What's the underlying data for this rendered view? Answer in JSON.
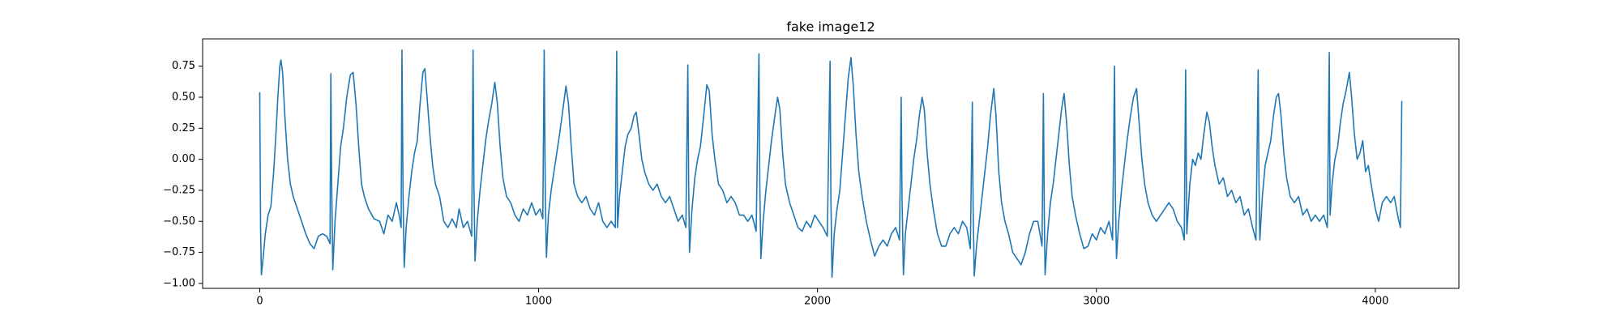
{
  "chart_data": {
    "type": "line",
    "title": "fake image12",
    "color": "#1f77b4",
    "grid": false,
    "xlim": [
      -204.75,
      4299.75
    ],
    "xticks": [
      0,
      1000,
      2000,
      3000,
      4000
    ],
    "ylim": [
      -1.04,
      0.97
    ],
    "yticks": [
      {
        "value": -1,
        "label": "−1.00"
      },
      {
        "value": -0.75,
        "label": "−0.75"
      },
      {
        "value": -0.5,
        "label": "−0.50"
      },
      {
        "value": -0.25,
        "label": "−0.25"
      },
      {
        "value": 0,
        "label": "0.00"
      },
      {
        "value": 0.25,
        "label": "0.25"
      },
      {
        "value": 0.5,
        "label": "0.50"
      },
      {
        "value": 0.75,
        "label": "0.75"
      }
    ],
    "x": [
      0,
      3,
      6,
      12,
      20,
      30,
      40,
      50,
      58,
      65,
      72,
      76,
      82,
      90,
      100,
      110,
      120,
      135,
      150,
      165,
      180,
      195,
      210,
      225,
      240,
      252,
      255,
      258,
      262,
      270,
      280,
      290,
      300,
      312,
      325,
      335,
      345,
      355,
      365,
      375,
      390,
      410,
      430,
      445,
      460,
      475,
      490,
      500,
      507,
      510,
      514,
      518,
      525,
      535,
      545,
      555,
      565,
      575,
      585,
      592,
      600,
      610,
      620,
      630,
      645,
      660,
      675,
      690,
      705,
      715,
      730,
      745,
      760,
      765,
      768,
      772,
      780,
      790,
      800,
      810,
      820,
      832,
      843,
      852,
      862,
      872,
      885,
      900,
      915,
      930,
      945,
      960,
      975,
      990,
      1005,
      1015,
      1020,
      1024,
      1028,
      1035,
      1045,
      1055,
      1065,
      1075,
      1087,
      1098,
      1107,
      1117,
      1127,
      1140,
      1155,
      1170,
      1185,
      1200,
      1215,
      1230,
      1245,
      1260,
      1275,
      1280,
      1283,
      1290,
      1300,
      1310,
      1320,
      1332,
      1342,
      1350,
      1360,
      1370,
      1380,
      1395,
      1410,
      1425,
      1440,
      1455,
      1470,
      1485,
      1500,
      1515,
      1528,
      1535,
      1538,
      1541,
      1550,
      1560,
      1570,
      1580,
      1592,
      1603,
      1612,
      1622,
      1632,
      1645,
      1660,
      1675,
      1690,
      1705,
      1720,
      1735,
      1750,
      1765,
      1780,
      1790,
      1793,
      1797,
      1805,
      1815,
      1825,
      1835,
      1847,
      1857,
      1865,
      1875,
      1885,
      1900,
      1915,
      1930,
      1945,
      1960,
      1975,
      1990,
      2005,
      2020,
      2035,
      2045,
      2048,
      2052,
      2060,
      2070,
      2080,
      2090,
      2100,
      2110,
      2120,
      2128,
      2138,
      2148,
      2160,
      2175,
      2190,
      2205,
      2220,
      2235,
      2250,
      2265,
      2280,
      2294,
      2300,
      2303,
      2308,
      2315,
      2325,
      2335,
      2345,
      2355,
      2365,
      2375,
      2383,
      2393,
      2403,
      2415,
      2430,
      2445,
      2460,
      2475,
      2490,
      2505,
      2520,
      2535,
      2548,
      2555,
      2558,
      2562,
      2570,
      2580,
      2590,
      2600,
      2610,
      2620,
      2632,
      2640,
      2650,
      2660,
      2672,
      2685,
      2700,
      2715,
      2730,
      2745,
      2760,
      2775,
      2790,
      2805,
      2810,
      2813,
      2816,
      2825,
      2835,
      2845,
      2855,
      2865,
      2875,
      2884,
      2893,
      2903,
      2913,
      2925,
      2940,
      2955,
      2970,
      2985,
      3000,
      3015,
      3030,
      3045,
      3058,
      3065,
      3068,
      3072,
      3080,
      3090,
      3100,
      3110,
      3122,
      3133,
      3144,
      3153,
      3163,
      3173,
      3185,
      3200,
      3215,
      3230,
      3245,
      3260,
      3275,
      3290,
      3305,
      3315,
      3320,
      3324,
      3335,
      3345,
      3355,
      3365,
      3375,
      3385,
      3396,
      3405,
      3415,
      3425,
      3440,
      3455,
      3470,
      3485,
      3500,
      3515,
      3530,
      3545,
      3560,
      3572,
      3580,
      3583,
      3586,
      3595,
      3605,
      3615,
      3625,
      3635,
      3645,
      3653,
      3662,
      3672,
      3682,
      3695,
      3710,
      3725,
      3740,
      3755,
      3770,
      3785,
      3800,
      3815,
      3828,
      3835,
      3838,
      3845,
      3855,
      3865,
      3875,
      3885,
      3895,
      3907,
      3915,
      3925,
      3935,
      3945,
      3955,
      3965,
      3975,
      3985,
      4000,
      4012,
      4025,
      4040,
      4055,
      4068,
      4080,
      4090,
      4095
    ],
    "values": [
      0.54,
      -0.55,
      -0.93,
      -0.8,
      -0.6,
      -0.45,
      -0.38,
      -0.1,
      0.2,
      0.5,
      0.75,
      0.8,
      0.7,
      0.35,
      0,
      -0.2,
      -0.3,
      -0.4,
      -0.5,
      -0.6,
      -0.68,
      -0.72,
      -0.62,
      -0.6,
      -0.62,
      -0.68,
      0.69,
      -0.2,
      -0.89,
      -0.5,
      -0.2,
      0.1,
      0.25,
      0.5,
      0.68,
      0.7,
      0.45,
      0.1,
      -0.2,
      -0.3,
      -0.4,
      -0.48,
      -0.5,
      -0.6,
      -0.45,
      -0.5,
      -0.35,
      -0.45,
      -0.55,
      0.88,
      -0.3,
      -0.87,
      -0.55,
      -0.3,
      -0.1,
      0.05,
      0.15,
      0.45,
      0.7,
      0.73,
      0.5,
      0.2,
      -0.05,
      -0.2,
      -0.3,
      -0.5,
      -0.55,
      -0.48,
      -0.55,
      -0.4,
      -0.55,
      -0.5,
      -0.62,
      0.88,
      -0.2,
      -0.82,
      -0.5,
      -0.25,
      -0.05,
      0.15,
      0.3,
      0.45,
      0.62,
      0.45,
      0.1,
      -0.15,
      -0.3,
      -0.35,
      -0.45,
      -0.5,
      -0.4,
      -0.45,
      -0.35,
      -0.45,
      -0.4,
      -0.48,
      0.88,
      -0.3,
      -0.79,
      -0.45,
      -0.25,
      -0.1,
      0.05,
      0.2,
      0.4,
      0.59,
      0.45,
      0.1,
      -0.2,
      -0.3,
      -0.35,
      -0.3,
      -0.4,
      -0.45,
      -0.35,
      -0.5,
      -0.55,
      -0.5,
      -0.55,
      0.87,
      -0.55,
      -0.3,
      -0.1,
      0.1,
      0.2,
      0.25,
      0.35,
      0.38,
      0.2,
      0,
      -0.1,
      -0.2,
      -0.25,
      -0.2,
      -0.3,
      -0.35,
      -0.3,
      -0.4,
      -0.5,
      -0.45,
      -0.55,
      0.76,
      -0.2,
      -0.75,
      -0.4,
      -0.15,
      0,
      0.1,
      0.35,
      0.6,
      0.55,
      0.2,
      0,
      -0.2,
      -0.25,
      -0.35,
      -0.3,
      -0.35,
      -0.45,
      -0.45,
      -0.5,
      -0.45,
      -0.58,
      0.85,
      -0.2,
      -0.8,
      -0.5,
      -0.25,
      -0.05,
      0.15,
      0.35,
      0.5,
      0.4,
      0.05,
      -0.2,
      -0.35,
      -0.45,
      -0.55,
      -0.58,
      -0.5,
      -0.55,
      -0.45,
      -0.5,
      -0.55,
      -0.62,
      0.79,
      -0.3,
      -0.95,
      -0.6,
      -0.4,
      -0.25,
      0.05,
      0.35,
      0.65,
      0.82,
      0.6,
      0.2,
      -0.1,
      -0.3,
      -0.5,
      -0.65,
      -0.78,
      -0.7,
      -0.65,
      -0.7,
      -0.6,
      -0.55,
      -0.65,
      0.5,
      -0.3,
      -0.93,
      -0.6,
      -0.4,
      -0.2,
      0,
      0.15,
      0.35,
      0.5,
      0.4,
      0.05,
      -0.2,
      -0.4,
      -0.6,
      -0.7,
      -0.7,
      -0.6,
      -0.55,
      -0.6,
      -0.5,
      -0.55,
      -0.72,
      0.46,
      -0.4,
      -0.94,
      -0.7,
      -0.5,
      -0.3,
      -0.1,
      0.1,
      0.35,
      0.57,
      0.35,
      -0.1,
      -0.35,
      -0.5,
      -0.6,
      -0.75,
      -0.8,
      -0.85,
      -0.75,
      -0.6,
      -0.5,
      -0.5,
      -0.7,
      0.53,
      -0.4,
      -0.93,
      -0.6,
      -0.35,
      -0.2,
      0,
      0.2,
      0.4,
      0.53,
      0.3,
      -0.05,
      -0.3,
      -0.45,
      -0.6,
      -0.72,
      -0.7,
      -0.6,
      -0.65,
      -0.55,
      -0.6,
      -0.5,
      -0.65,
      0.75,
      -0.3,
      -0.8,
      -0.5,
      -0.25,
      -0.05,
      0.15,
      0.35,
      0.5,
      0.57,
      0.3,
      0,
      -0.2,
      -0.35,
      -0.45,
      -0.5,
      -0.45,
      -0.4,
      -0.35,
      -0.4,
      -0.5,
      -0.55,
      -0.65,
      0.72,
      -0.6,
      -0.2,
      0,
      -0.05,
      0.05,
      0,
      0.2,
      0.38,
      0.3,
      0.1,
      -0.05,
      -0.2,
      -0.15,
      -0.3,
      -0.25,
      -0.35,
      -0.3,
      -0.45,
      -0.4,
      -0.55,
      -0.65,
      0.72,
      -0.2,
      -0.65,
      -0.3,
      -0.05,
      0.05,
      0.15,
      0.35,
      0.5,
      0.53,
      0.35,
      0.05,
      -0.15,
      -0.3,
      -0.35,
      -0.3,
      -0.45,
      -0.4,
      -0.5,
      -0.45,
      -0.5,
      -0.45,
      -0.55,
      0.86,
      -0.45,
      -0.2,
      0,
      0.1,
      0.3,
      0.45,
      0.55,
      0.7,
      0.5,
      0.2,
      0,
      0.05,
      0.15,
      -0.1,
      -0.05,
      -0.2,
      -0.4,
      -0.5,
      -0.35,
      -0.3,
      -0.35,
      -0.3,
      -0.45,
      -0.55,
      0.47
    ]
  }
}
